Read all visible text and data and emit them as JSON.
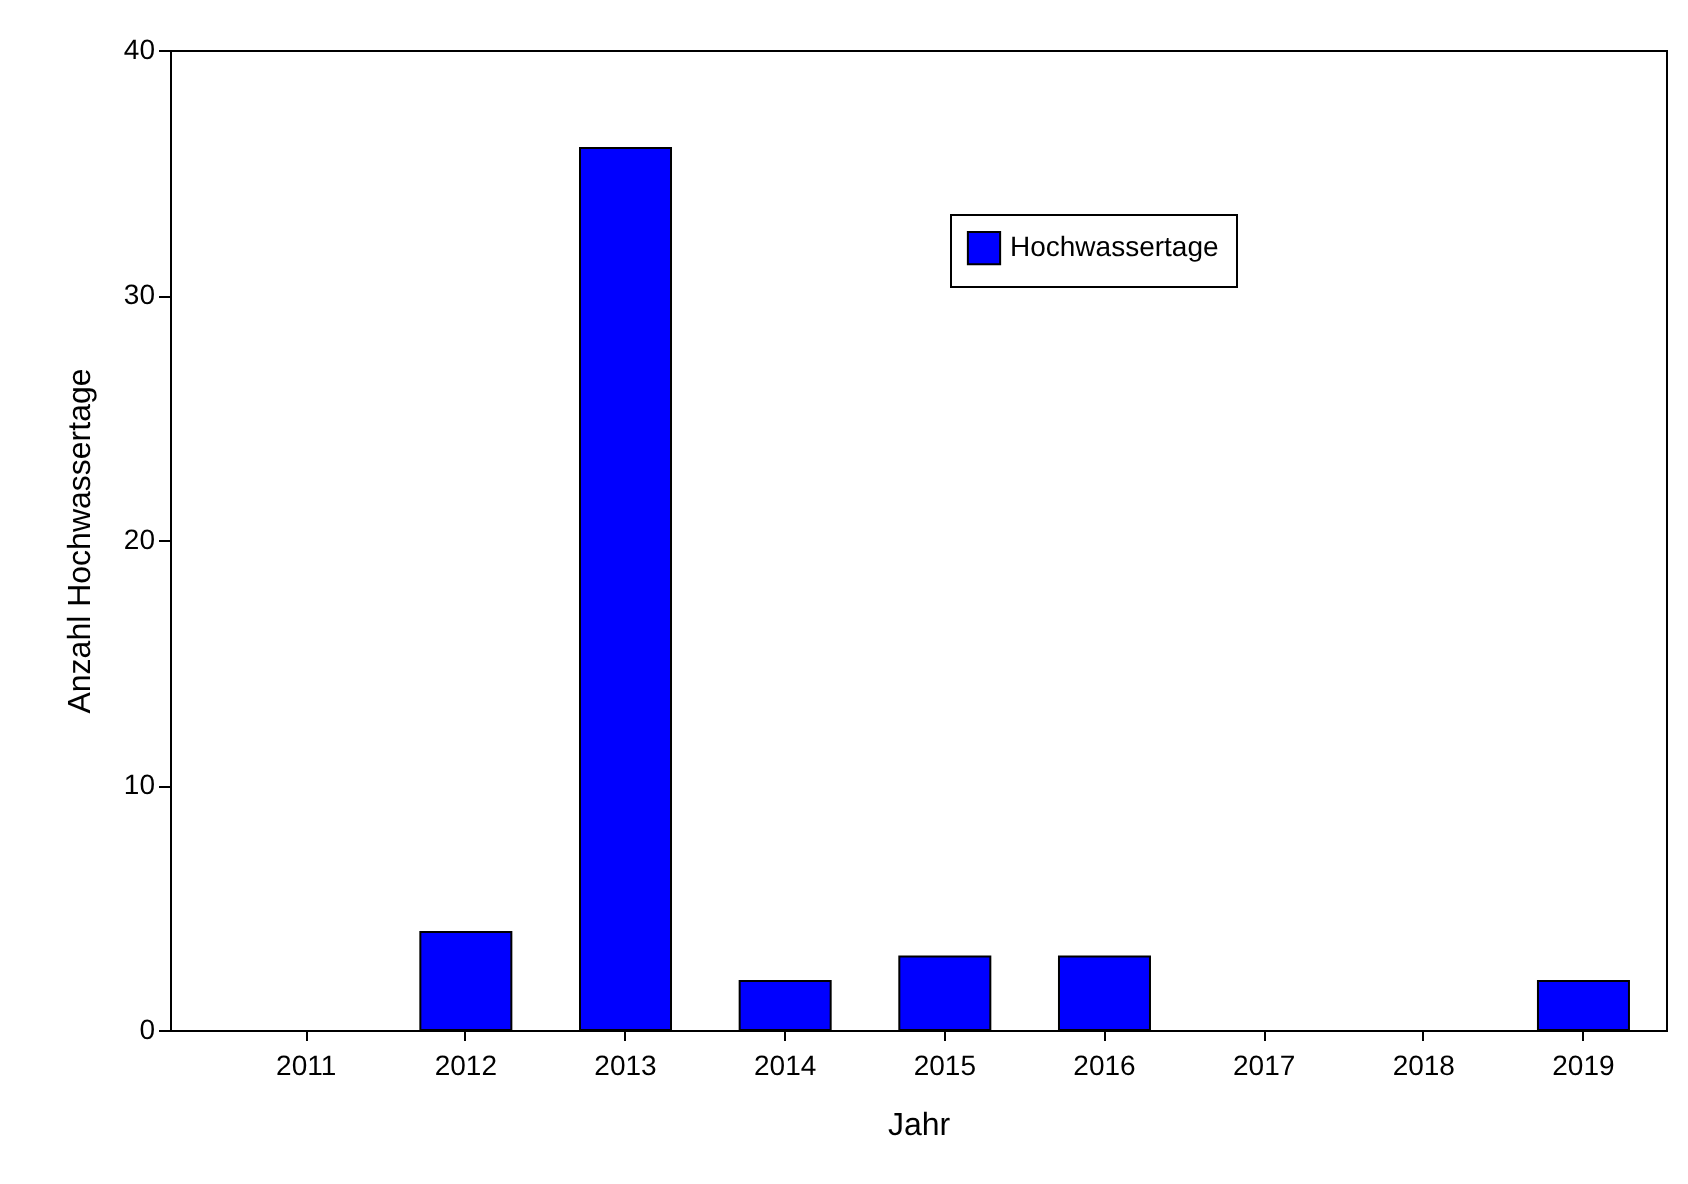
{
  "chart_data": {
    "type": "bar",
    "xlabel": "Jahr",
    "ylabel": "Anzahl Hochwassertage",
    "categories": [
      "2011",
      "2012",
      "2013",
      "2014",
      "2015",
      "2016",
      "2017",
      "2018",
      "2019"
    ],
    "series": [
      {
        "name": "Hochwassertage",
        "color": "#0000ff",
        "values": [
          0,
          4,
          36,
          2,
          3,
          3,
          0,
          0,
          2
        ]
      }
    ],
    "ylim": [
      0,
      40
    ],
    "yticks": [
      0,
      10,
      20,
      30,
      40
    ],
    "grid": false,
    "legend": "top right"
  }
}
